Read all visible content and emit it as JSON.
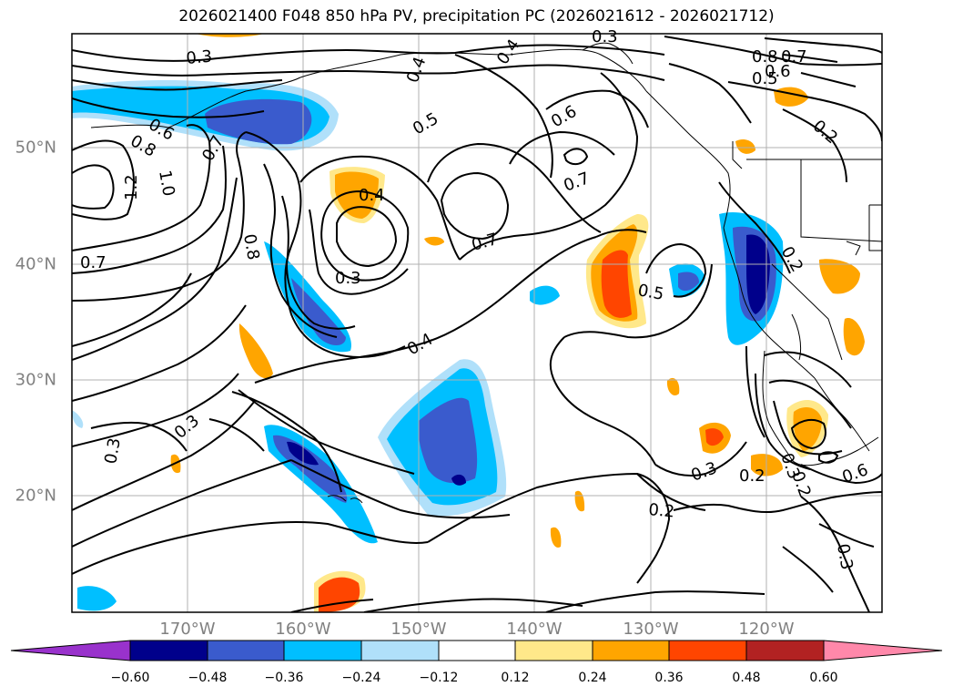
{
  "title": "2026021400 F048 850 hPa PV, precipitation PC (2026021612 - 2026021712)",
  "lat_labels": [
    "50°N",
    "40°N",
    "30°N",
    "20°N"
  ],
  "lon_labels": [
    "170°W",
    "160°W",
    "150°W",
    "140°W",
    "130°W",
    "120°W"
  ],
  "colorbar": {
    "ticks": [
      "−0.60",
      "−0.48",
      "−0.36",
      "−0.24",
      "−0.12",
      "0.12",
      "0.24",
      "0.36",
      "0.48",
      "0.60"
    ],
    "colors": [
      "#9932cc",
      "#00008b",
      "#3a5bcd",
      "#00bfff",
      "#b0e0fa",
      "#ffffff",
      "#ffe88a",
      "#ffa500",
      "#ff4500",
      "#b22222",
      "#ff88aa"
    ]
  },
  "contour_labels": [
    "0.3",
    "0.4",
    "0.4",
    "0.3",
    "0.8",
    "0.7",
    "0.6",
    "0.5",
    "0.5",
    "0.6",
    "0.6",
    "0.8",
    "0.7",
    "0.2",
    "1.2",
    "1.0",
    "0.7",
    "0.7",
    "0.8",
    "0.4",
    "0.3",
    "0.7",
    "0.5",
    "0.2",
    "0.4",
    "0.3",
    "0.3",
    "0.2",
    "0.3",
    "0.2",
    "0.3",
    "0.2",
    "0.6",
    "0.3"
  ]
}
